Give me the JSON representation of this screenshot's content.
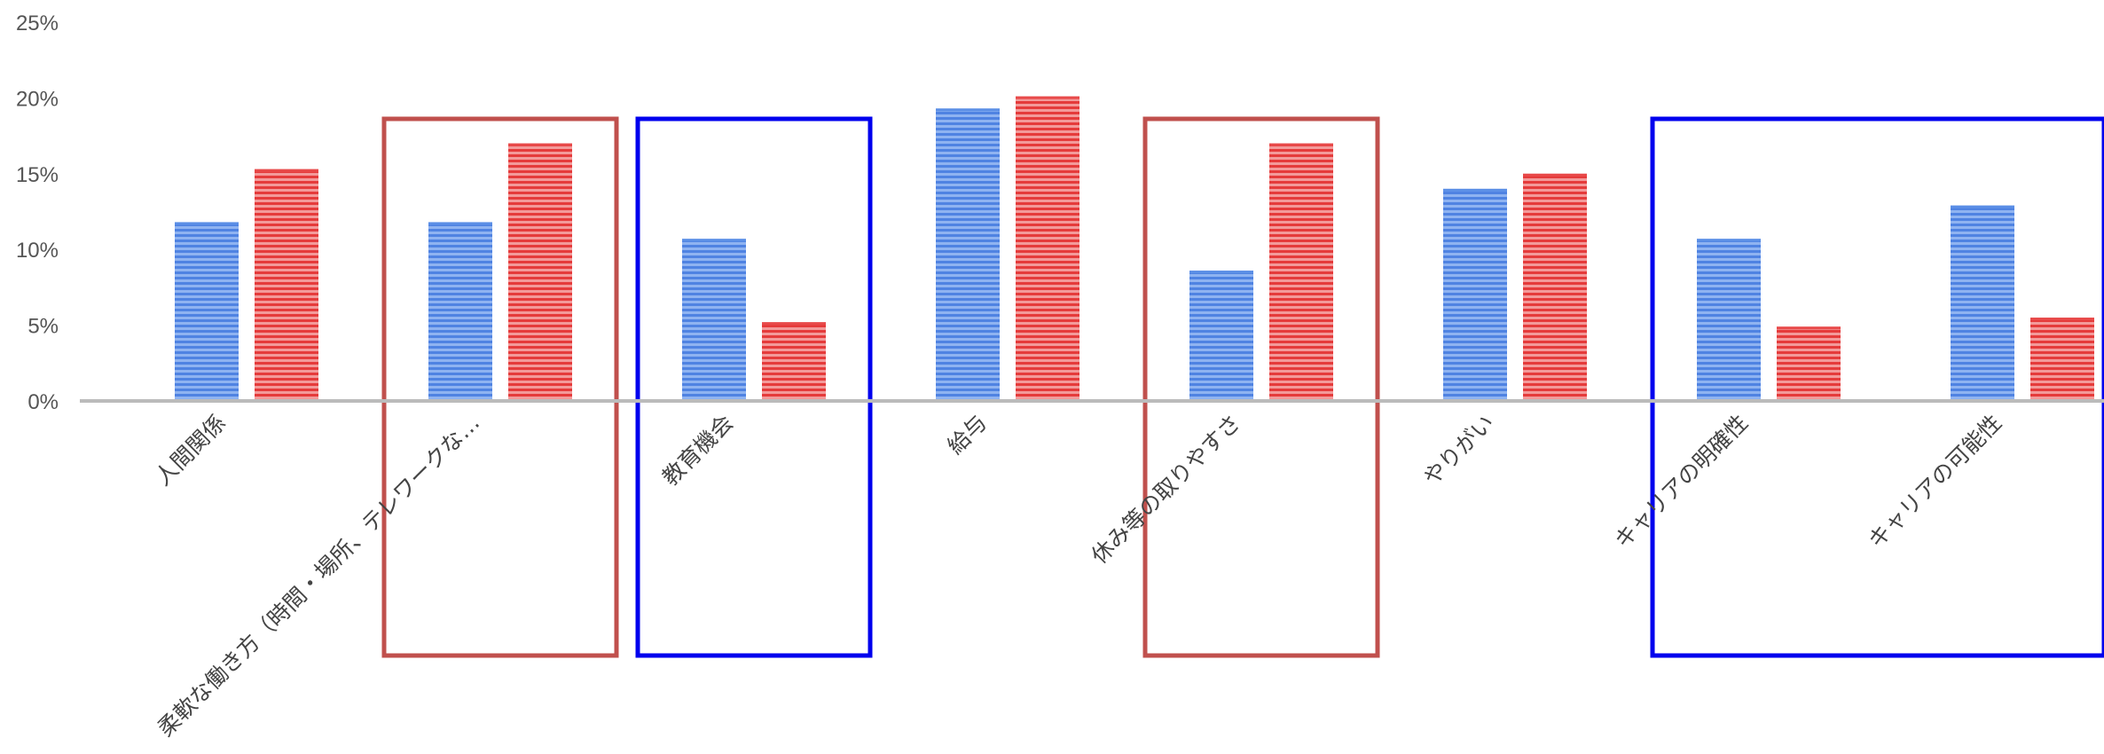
{
  "chart_data": {
    "type": "bar",
    "title": "",
    "xlabel": "",
    "ylabel": "",
    "ylim": [
      0,
      25
    ],
    "y_ticks": [
      "0%",
      "5%",
      "10%",
      "15%",
      "20%",
      "25%"
    ],
    "y_tick_values": [
      0,
      5,
      10,
      15,
      20,
      25
    ],
    "grid": false,
    "legend": "none",
    "categories": [
      "人間関係",
      "柔軟な働き方（時間・場所、テレワークな…",
      "教育機会",
      "給与",
      "休み等の取りやすさ",
      "やりがい",
      "キャリアの明確性",
      "キャリアの可能性"
    ],
    "series": [
      {
        "color": "#5b8fe6",
        "values": [
          11.8,
          11.8,
          10.7,
          19.3,
          8.6,
          14.0,
          10.7,
          12.9
        ]
      },
      {
        "color": "#e84a4a",
        "values": [
          15.3,
          17.0,
          5.2,
          20.1,
          17.0,
          15.0,
          4.9,
          5.5
        ]
      }
    ],
    "highlight_boxes": [
      {
        "categories": [
          1
        ],
        "color": "#c0504d"
      },
      {
        "categories": [
          2
        ],
        "color": "#0000ee"
      },
      {
        "categories": [
          4
        ],
        "color": "#c0504d"
      },
      {
        "categories": [
          6,
          7
        ],
        "color": "#0000ee"
      }
    ],
    "axis_color": "#bbbbbb"
  }
}
